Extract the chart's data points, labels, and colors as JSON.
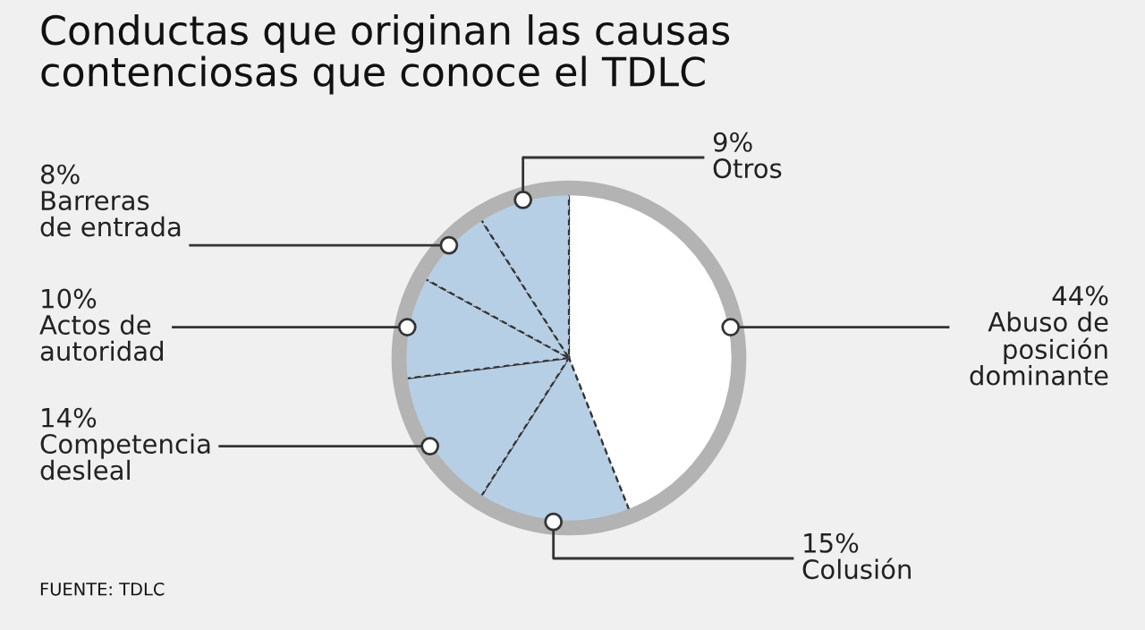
{
  "chart_data": {
    "type": "pie",
    "title": "Conductas que originan las causas\ncontenciosas que conoce el TDLC",
    "categories": [
      "Abuso de\nposición\ndominante",
      "Colusión",
      "Competencia\ndesleal",
      "Actos de\nautoridad",
      "Barreras\nde entrada",
      "Otros"
    ],
    "values": [
      44,
      15,
      14,
      10,
      8,
      9
    ],
    "value_labels": [
      "44%",
      "15%",
      "14%",
      "10%",
      "8%",
      "9%"
    ],
    "colors": [
      "#ffffff",
      "#b7cfe5",
      "#b7cfe5",
      "#b7cfe5",
      "#b7cfe5",
      "#b7cfe5"
    ],
    "annotations": [
      "FUENTE: TDLC"
    ]
  }
}
